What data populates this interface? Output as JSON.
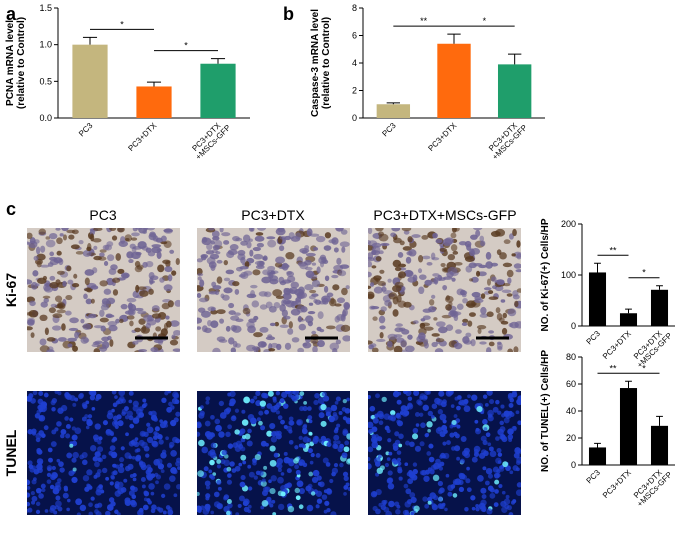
{
  "panel_labels": [
    "a",
    "b",
    "c"
  ],
  "image_columns": [
    "PC3",
    "PC3+DTX",
    "PC3+DTX+MSCs-GFP"
  ],
  "image_rows": [
    "Ki-67",
    "TUNEL"
  ],
  "chart_data": [
    {
      "type": "bar",
      "ylabel": [
        "PCNA mRNA level",
        "(relative to Control)"
      ],
      "categories": [
        [
          "PC3"
        ],
        [
          "PC3+DTX"
        ],
        [
          "PC3+DTX",
          "+MSCs-GFP"
        ]
      ],
      "values": [
        1.0,
        0.43,
        0.74
      ],
      "errors": [
        0.1,
        0.06,
        0.07
      ],
      "colors": [
        "#c4b67e",
        "#ff6a0d",
        "#1f9e6b"
      ],
      "ylim": [
        0,
        1.5
      ],
      "yticks": [
        {
          "value": 0,
          "label": "0.0"
        },
        0.5,
        {
          "value": 1,
          "label": "1.0"
        },
        1.5
      ],
      "annotations": [
        {
          "text": "*",
          "between": [
            0,
            1
          ]
        },
        {
          "text": "*",
          "between": [
            1,
            2
          ]
        }
      ]
    },
    {
      "type": "bar",
      "ylabel": [
        "Caspase-3 mRNA level",
        "(relative to Control)"
      ],
      "categories": [
        [
          "PC3"
        ],
        [
          "PC3+DTX"
        ],
        [
          "PC3+DTX",
          "+MSCs-GFP"
        ]
      ],
      "values": [
        1.0,
        5.4,
        3.9
      ],
      "errors": [
        0.1,
        0.7,
        0.75
      ],
      "colors": [
        "#c4b67e",
        "#ff6a0d",
        "#1f9e6b"
      ],
      "ylim": [
        0,
        8
      ],
      "yticks": [
        0,
        2,
        4,
        6,
        8
      ],
      "annotations": [
        {
          "text": "**",
          "between": [
            0,
            1
          ]
        },
        {
          "text": "*",
          "between": [
            1,
            2
          ]
        }
      ]
    },
    {
      "type": "bar",
      "ylabel": [
        "NO. of Ki-67(+) Cells/HP"
      ],
      "categories": [
        [
          "PC3"
        ],
        [
          "PC3+DTX"
        ],
        [
          "PC3+DTX",
          "+MSCs-GFP"
        ]
      ],
      "values": [
        105,
        25,
        71
      ],
      "errors": [
        18,
        8,
        8
      ],
      "colors": [
        "#000000",
        "#000000",
        "#000000"
      ],
      "ylim": [
        0,
        200
      ],
      "yticks": [
        0,
        100,
        200
      ],
      "annotations": [
        {
          "text": "**",
          "between": [
            0,
            1
          ]
        },
        {
          "text": "*",
          "between": [
            1,
            2
          ]
        }
      ]
    },
    {
      "type": "bar",
      "ylabel": [
        "NO. of TUNEL(+) Cells/HP"
      ],
      "categories": [
        [
          "PC3"
        ],
        [
          "PC3+DTX"
        ],
        [
          "PC3+DTX",
          "+MSCs-GFP"
        ]
      ],
      "values": [
        13,
        57,
        29
      ],
      "errors": [
        3,
        5,
        7
      ],
      "colors": [
        "#000000",
        "#000000",
        "#000000"
      ],
      "ylim": [
        0,
        80
      ],
      "yticks": [
        0,
        20,
        40,
        60,
        80
      ],
      "annotations": [
        {
          "text": "**",
          "between": [
            0,
            1
          ]
        },
        {
          "text": "*",
          "between": [
            1,
            2
          ]
        }
      ]
    }
  ]
}
